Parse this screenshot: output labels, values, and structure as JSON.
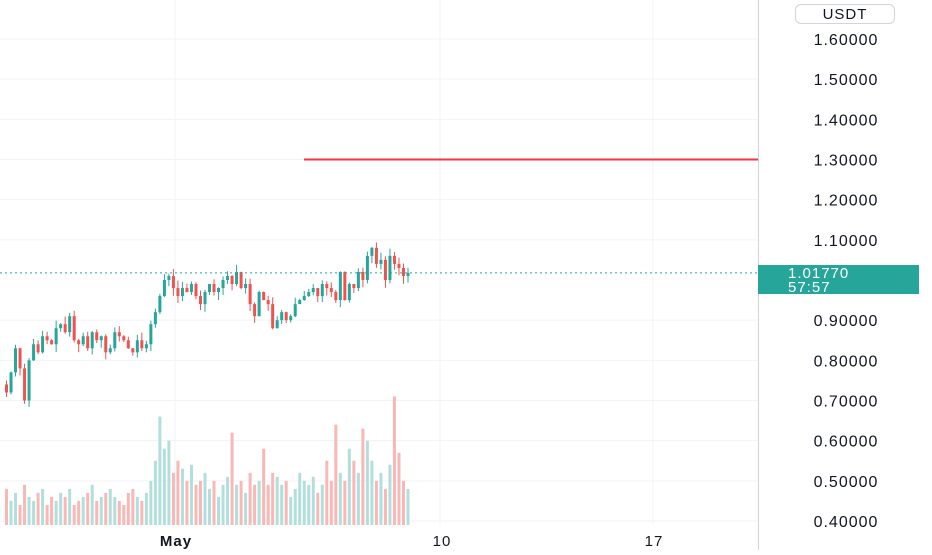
{
  "chart_data": {
    "type": "candlestick",
    "quote_currency": "USDT",
    "y_ticks": [
      "1.60000",
      "1.50000",
      "1.40000",
      "1.30000",
      "1.20000",
      "1.10000",
      "0.90000",
      "0.80000",
      "0.70000",
      "0.60000",
      "0.50000",
      "0.40000"
    ],
    "x_ticks": [
      "May",
      "10",
      "17"
    ],
    "last_price": "1.01770",
    "countdown": "57:57",
    "horizontal_line_price": 1.3,
    "price_path": [
      0.74,
      0.72,
      0.77,
      0.83,
      0.78,
      0.7,
      0.8,
      0.84,
      0.82,
      0.86,
      0.85,
      0.84,
      0.88,
      0.89,
      0.87,
      0.91,
      0.85,
      0.84,
      0.86,
      0.83,
      0.87,
      0.85,
      0.86,
      0.82,
      0.83,
      0.87,
      0.86,
      0.85,
      0.83,
      0.82,
      0.85,
      0.83,
      0.84,
      0.89,
      0.92,
      0.96,
      1.0,
      1.01,
      0.98,
      0.96,
      0.98,
      0.97,
      0.99,
      0.96,
      0.94,
      0.97,
      0.99,
      0.97,
      0.98,
      1.0,
      1.01,
      0.99,
      1.02,
      0.98,
      0.99,
      0.94,
      0.91,
      0.97,
      0.95,
      0.94,
      0.88,
      0.9,
      0.92,
      0.9,
      0.91,
      0.94,
      0.95,
      0.96,
      0.97,
      0.98,
      0.96,
      0.99,
      0.98,
      0.97,
      0.95,
      1.02,
      0.95,
      0.99,
      0.98,
      1.02,
      1.0,
      1.06,
      1.08,
      1.04,
      1.05,
      1.0,
      1.06,
      1.04,
      1.03,
      1.01,
      1.0177
    ],
    "volume_path": [
      0.46,
      0.48,
      0.45,
      0.47,
      0.44,
      0.49,
      0.46,
      0.45,
      0.47,
      0.48,
      0.44,
      0.46,
      0.45,
      0.47,
      0.46,
      0.48,
      0.44,
      0.45,
      0.46,
      0.47,
      0.49,
      0.45,
      0.46,
      0.47,
      0.48,
      0.46,
      0.45,
      0.44,
      0.47,
      0.48,
      0.46,
      0.45,
      0.47,
      0.5,
      0.55,
      0.66,
      0.58,
      0.6,
      0.52,
      0.55,
      0.53,
      0.5,
      0.54,
      0.49,
      0.5,
      0.52,
      0.48,
      0.5,
      0.46,
      0.49,
      0.51,
      0.62,
      0.49,
      0.5,
      0.47,
      0.52,
      0.49,
      0.5,
      0.58,
      0.49,
      0.52,
      0.51,
      0.49,
      0.5,
      0.46,
      0.48,
      0.52,
      0.5,
      0.49,
      0.51,
      0.47,
      0.49,
      0.55,
      0.5,
      0.64,
      0.52,
      0.5,
      0.58,
      0.55,
      0.52,
      0.63,
      0.6,
      0.55,
      0.5,
      0.52,
      0.48,
      0.54,
      0.71,
      0.57,
      0.5,
      0.48
    ],
    "colors": {
      "up": "#26a69a",
      "down": "#ef5350",
      "line": "#f23645",
      "volume_up": "#b2dfdb",
      "volume_down": "#f7b8b6",
      "grid": "#f0f3fa",
      "dotted": "#26a69a"
    }
  }
}
